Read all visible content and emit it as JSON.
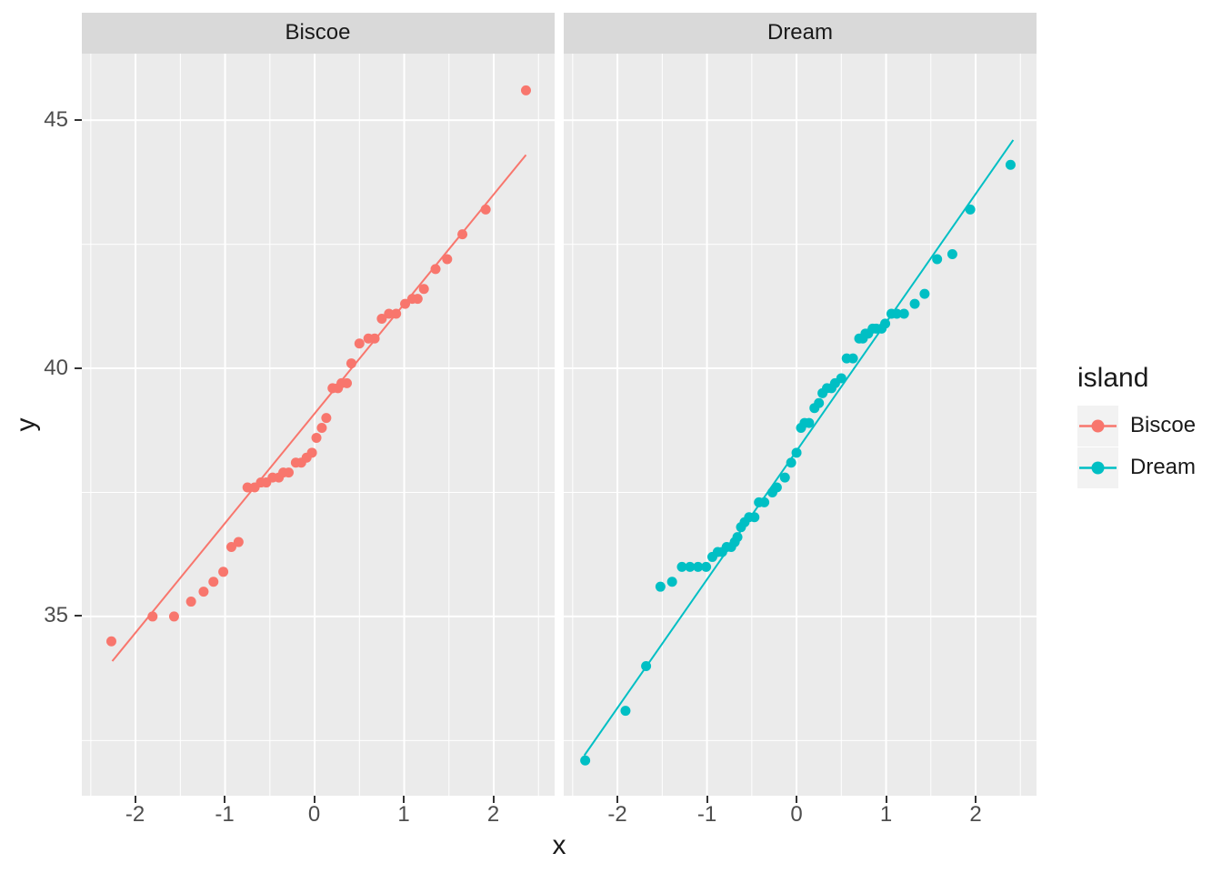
{
  "chart_data": {
    "type": "scatter",
    "title": "",
    "xlabel": "x",
    "ylabel": "y",
    "xlim": [
      -2.6,
      2.68
    ],
    "ylim": [
      31.38,
      46.34
    ],
    "x_ticks": [
      -2,
      -1,
      0,
      1,
      2
    ],
    "x_minor_ticks": [
      -2.5,
      -1.5,
      -0.5,
      0.5,
      1.5,
      2.5
    ],
    "y_ticks": [
      35,
      40,
      45
    ],
    "y_minor_ticks": [
      32.5,
      37.5,
      42.5
    ],
    "grid": true,
    "legend": {
      "title": "island",
      "position": "right",
      "entries": [
        {
          "label": "Biscoe",
          "color": "#F8766D"
        },
        {
          "label": "Dream",
          "color": "#00BFC4"
        }
      ]
    },
    "facets": [
      {
        "label": "Biscoe",
        "color": "#F8766D",
        "qq_line": {
          "x1": -2.26,
          "y1": 34.1,
          "x2": 2.36,
          "y2": 44.3
        },
        "points": [
          [
            -2.27,
            34.5
          ],
          [
            -1.81,
            35.0
          ],
          [
            -1.57,
            35.0
          ],
          [
            -1.38,
            35.3
          ],
          [
            -1.24,
            35.5
          ],
          [
            -1.13,
            35.7
          ],
          [
            -1.02,
            35.9
          ],
          [
            -0.93,
            36.4
          ],
          [
            -0.85,
            36.5
          ],
          [
            -0.75,
            37.6
          ],
          [
            -0.67,
            37.6
          ],
          [
            -0.6,
            37.7
          ],
          [
            -0.54,
            37.7
          ],
          [
            -0.47,
            37.8
          ],
          [
            -0.4,
            37.8
          ],
          [
            -0.35,
            37.9
          ],
          [
            -0.29,
            37.9
          ],
          [
            -0.21,
            38.1
          ],
          [
            -0.15,
            38.1
          ],
          [
            -0.09,
            38.2
          ],
          [
            -0.03,
            38.3
          ],
          [
            0.02,
            38.6
          ],
          [
            0.08,
            38.8
          ],
          [
            0.13,
            39.0
          ],
          [
            0.2,
            39.6
          ],
          [
            0.26,
            39.6
          ],
          [
            0.3,
            39.7
          ],
          [
            0.36,
            39.7
          ],
          [
            0.41,
            40.1
          ],
          [
            0.5,
            40.5
          ],
          [
            0.6,
            40.6
          ],
          [
            0.67,
            40.6
          ],
          [
            0.75,
            41.0
          ],
          [
            0.83,
            41.1
          ],
          [
            0.91,
            41.1
          ],
          [
            1.01,
            41.3
          ],
          [
            1.09,
            41.4
          ],
          [
            1.15,
            41.4
          ],
          [
            1.22,
            41.6
          ],
          [
            1.35,
            42.0
          ],
          [
            1.48,
            42.2
          ],
          [
            1.65,
            42.7
          ],
          [
            1.91,
            43.2
          ],
          [
            2.36,
            45.6
          ]
        ]
      },
      {
        "label": "Dream",
        "color": "#00BFC4",
        "qq_line": {
          "x1": -2.37,
          "y1": 32.2,
          "x2": 2.42,
          "y2": 44.6
        },
        "points": [
          [
            -2.36,
            32.1
          ],
          [
            -1.91,
            33.1
          ],
          [
            -1.68,
            34.0
          ],
          [
            -1.52,
            35.6
          ],
          [
            -1.39,
            35.7
          ],
          [
            -1.28,
            36.0
          ],
          [
            -1.19,
            36.0
          ],
          [
            -1.1,
            36.0
          ],
          [
            -1.01,
            36.0
          ],
          [
            -0.94,
            36.2
          ],
          [
            -0.88,
            36.3
          ],
          [
            -0.83,
            36.3
          ],
          [
            -0.78,
            36.4
          ],
          [
            -0.73,
            36.4
          ],
          [
            -0.69,
            36.5
          ],
          [
            -0.66,
            36.6
          ],
          [
            -0.62,
            36.8
          ],
          [
            -0.58,
            36.9
          ],
          [
            -0.53,
            37.0
          ],
          [
            -0.47,
            37.0
          ],
          [
            -0.42,
            37.3
          ],
          [
            -0.36,
            37.3
          ],
          [
            -0.27,
            37.5
          ],
          [
            -0.22,
            37.6
          ],
          [
            -0.13,
            37.8
          ],
          [
            -0.06,
            38.1
          ],
          [
            0.0,
            38.3
          ],
          [
            0.05,
            38.8
          ],
          [
            0.09,
            38.9
          ],
          [
            0.14,
            38.9
          ],
          [
            0.2,
            39.2
          ],
          [
            0.25,
            39.3
          ],
          [
            0.29,
            39.5
          ],
          [
            0.34,
            39.6
          ],
          [
            0.39,
            39.6
          ],
          [
            0.43,
            39.7
          ],
          [
            0.5,
            39.8
          ],
          [
            0.56,
            40.2
          ],
          [
            0.63,
            40.2
          ],
          [
            0.7,
            40.6
          ],
          [
            0.74,
            40.6
          ],
          [
            0.77,
            40.7
          ],
          [
            0.8,
            40.7
          ],
          [
            0.85,
            40.8
          ],
          [
            0.89,
            40.8
          ],
          [
            0.95,
            40.8
          ],
          [
            0.99,
            40.9
          ],
          [
            1.06,
            41.1
          ],
          [
            1.12,
            41.1
          ],
          [
            1.2,
            41.1
          ],
          [
            1.32,
            41.3
          ],
          [
            1.43,
            41.5
          ],
          [
            1.57,
            42.2
          ],
          [
            1.74,
            42.3
          ],
          [
            1.94,
            43.2
          ],
          [
            2.39,
            44.1
          ]
        ]
      }
    ],
    "colors": {
      "panel_background": "#EBEBEB",
      "strip_background": "#D9D9D9",
      "grid_line": "#FFFFFF",
      "tick_mark": "#333333",
      "tick_label": "#4D4D4D",
      "text": "#1A1A1A",
      "legend_key_background": "#F2F2F2"
    }
  }
}
